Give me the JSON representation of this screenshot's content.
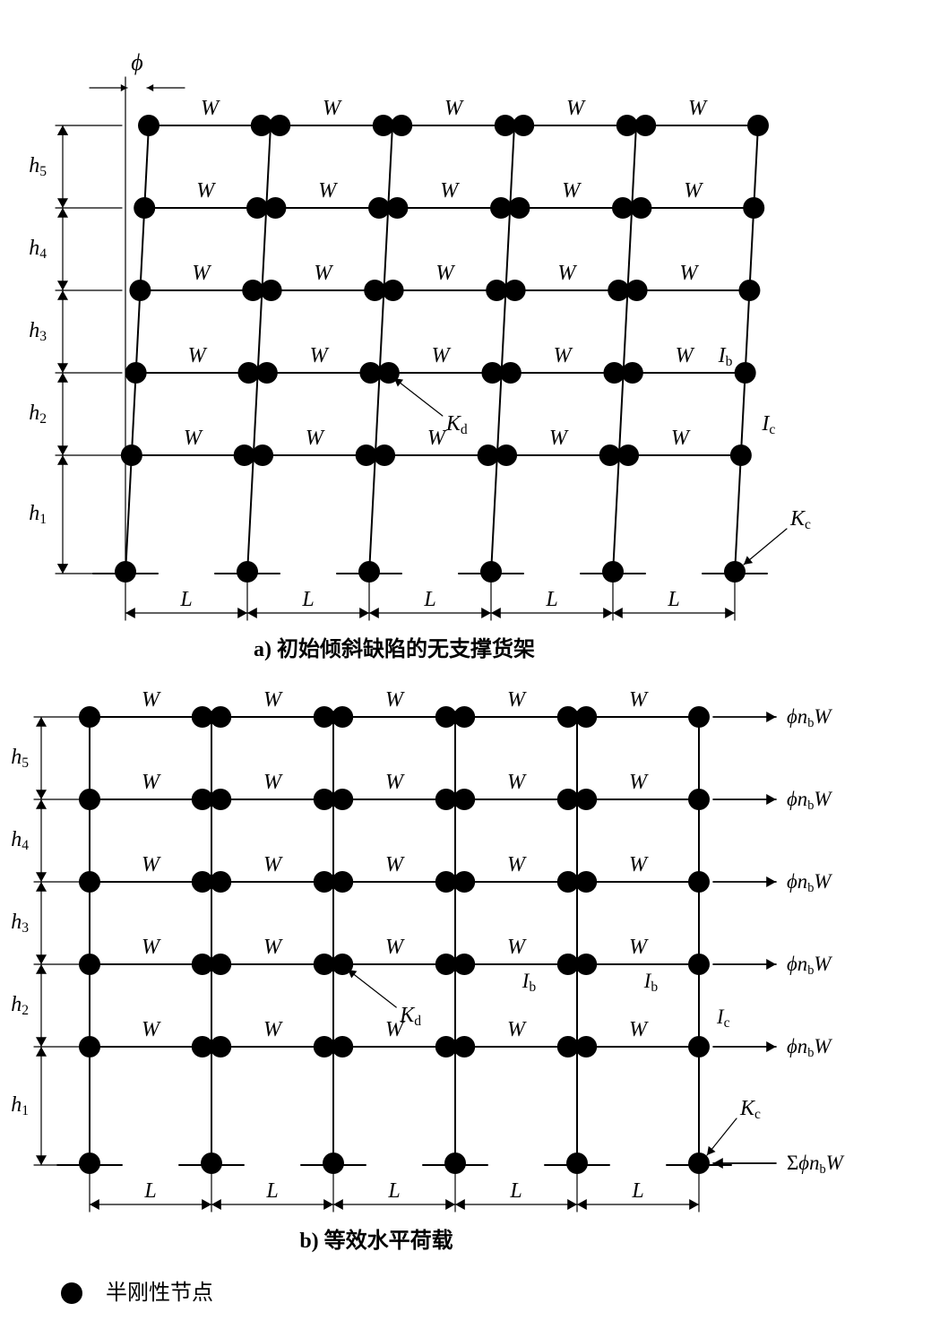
{
  "geometry": {
    "n_cols": 6,
    "n_beam_levels": 5,
    "L_labels": [
      "L",
      "L",
      "L",
      "L",
      "L"
    ],
    "h_labels": [
      "h",
      "h",
      "h",
      "h",
      "h"
    ],
    "h_subs": [
      "1",
      "2",
      "3",
      "4",
      "5"
    ],
    "W_label": "W",
    "phi_label": "ϕ",
    "Kd_label_letter": "K",
    "Kd_label_sub": "d",
    "Kc_label_letter": "K",
    "Kc_label_sub": "c",
    "Ib_label_letter": "I",
    "Ib_label_sub": "b",
    "Ic_label_letter": "I",
    "Ic_label_sub": "c",
    "force_label_prefix": "ϕn",
    "force_label_sub": "b",
    "force_label_suffix": "W",
    "sum_sym": "Σ",
    "caption_a_id": "a)",
    "caption_a_txt": "初始倾斜缺陷的无支撑货架",
    "caption_b_id": "b)",
    "caption_b_txt": "等效水平荷载",
    "legend_txt": "半刚性节点"
  },
  "style": {
    "node_r": 12,
    "line_w": 2,
    "thin_w": 1.2,
    "arrow_sz": 8,
    "dim_arrow_sz": 12,
    "text_color": "#000000",
    "line_color": "#000000",
    "fill_color": "#000000",
    "font_size_W": 24,
    "font_size_dim": 24,
    "font_size_K": 24,
    "font_size_phi": 26,
    "font_size_caption": 24,
    "font_size_legend": 24
  }
}
